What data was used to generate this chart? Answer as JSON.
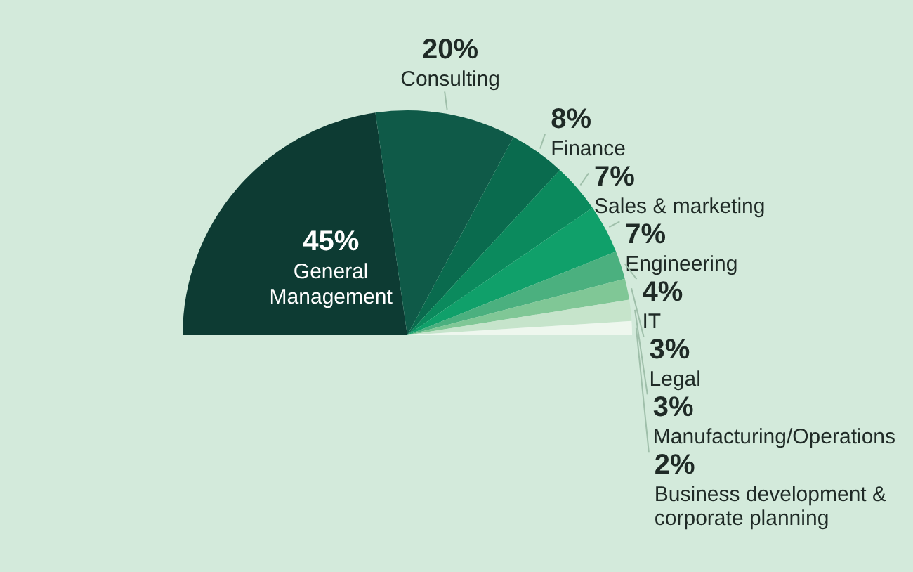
{
  "chart_data": {
    "type": "pie",
    "categories": [
      "General Management",
      "Consulting",
      "Finance",
      "Sales & marketing",
      "Engineering",
      "IT",
      "Legal",
      "Manufacturing/Operations",
      "Business development & corporate planning"
    ],
    "values": [
      45,
      20,
      8,
      7,
      7,
      4,
      3,
      3,
      2
    ],
    "colors": [
      "#0d3b33",
      "#0f5a48",
      "#0a6b4e",
      "#0b8a5d",
      "#10a06a",
      "#4bb07f",
      "#80c796",
      "#c6e4cb",
      "#eef7ee"
    ],
    "value_labels": [
      "45%",
      "20%",
      "8%",
      "7%",
      "7%",
      "4%",
      "3%",
      "3%",
      "2%"
    ]
  }
}
